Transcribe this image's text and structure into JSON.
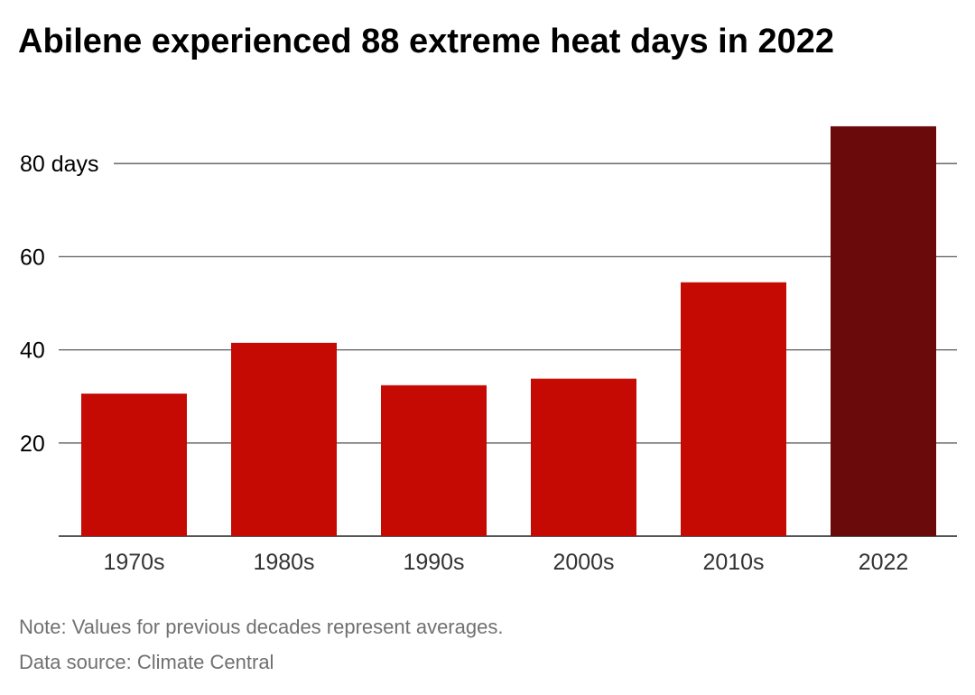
{
  "chart_data": {
    "type": "bar",
    "title": "Abilene experienced 88 extreme heat days in 2022",
    "categories": [
      "1970s",
      "1980s",
      "1990s",
      "2000s",
      "2010s",
      "2022"
    ],
    "values": [
      30.6,
      41.5,
      32.4,
      33.8,
      54.5,
      88
    ],
    "ylim": [
      0,
      88
    ],
    "yticks": [
      {
        "value": 20,
        "label": "20"
      },
      {
        "value": 40,
        "label": "40"
      },
      {
        "value": 60,
        "label": "60"
      },
      {
        "value": 80,
        "label": "80 days"
      }
    ],
    "colors": {
      "decade_bars": "#c40a03",
      "highlight_bar": "#6a0a0b",
      "gridline": "#5a5a5a",
      "axis": "#555555"
    },
    "highlight_category": "2022",
    "grid": true,
    "legend": "none"
  },
  "footer": {
    "note": "Note: Values for previous decades represent averages.",
    "source": "Data source: Climate Central"
  }
}
